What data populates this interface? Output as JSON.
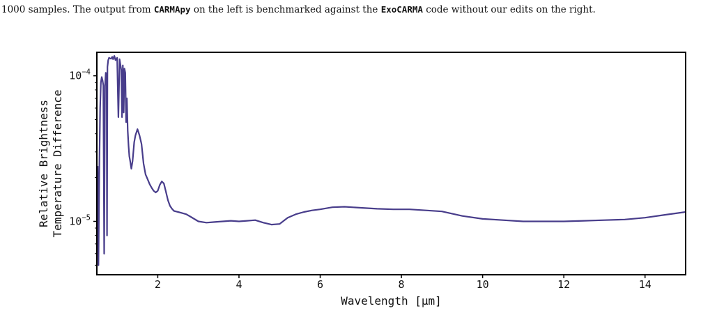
{
  "caption": {
    "part1": "1000 samples. The output from ",
    "code1": "CARMApy",
    "part2": " on the left is benchmarked against the ",
    "code2": "ExoCARMA",
    "part3": " code without our edits on the right."
  },
  "colors": {
    "line": "#483d8b",
    "axes": "#000000",
    "text": "#111111"
  },
  "chart_data": {
    "type": "line",
    "title": "",
    "xlabel": "Wavelength [μm]",
    "ylabel_lines": [
      "Relative Brightness",
      "Temperature Difference"
    ],
    "yscale": "log",
    "xlim": [
      0.5,
      15.0
    ],
    "ylim": [
      4.3e-06,
      0.000145
    ],
    "grid": false,
    "legend": "none",
    "x_ticks": [
      2,
      4,
      6,
      8,
      10,
      12,
      14
    ],
    "x_tick_labels": [
      "2",
      "4",
      "6",
      "8",
      "10",
      "12",
      "14"
    ],
    "y_ticks": [
      {
        "value": 0.0001,
        "base": "10",
        "exponent": "−4"
      },
      {
        "value": 1e-05,
        "base": "10",
        "exponent": "−5"
      }
    ],
    "series": [
      {
        "color": "#483d8b",
        "x": [
          0.52,
          0.54,
          0.56,
          0.58,
          0.6,
          0.62,
          0.64,
          0.66,
          0.68,
          0.7,
          0.72,
          0.74,
          0.75,
          0.76,
          0.78,
          0.8,
          0.82,
          0.85,
          0.88,
          0.9,
          0.93,
          0.96,
          1.0,
          1.03,
          1.06,
          1.1,
          1.12,
          1.14,
          1.16,
          1.18,
          1.2,
          1.22,
          1.24,
          1.26,
          1.28,
          1.3,
          1.32,
          1.35,
          1.38,
          1.42,
          1.45,
          1.5,
          1.55,
          1.6,
          1.65,
          1.7,
          1.75,
          1.8,
          1.85,
          1.9,
          1.95,
          2.0,
          2.05,
          2.1,
          2.15,
          2.2,
          2.25,
          2.3,
          2.35,
          2.4,
          2.5,
          2.6,
          2.7,
          2.8,
          3.0,
          3.2,
          3.4,
          3.6,
          3.8,
          4.0,
          4.2,
          4.4,
          4.6,
          4.8,
          5.0,
          5.2,
          5.4,
          5.6,
          5.8,
          6.0,
          6.3,
          6.6,
          7.0,
          7.4,
          7.8,
          8.2,
          8.6,
          9.0,
          9.5,
          10.0,
          10.5,
          11.0,
          11.5,
          12.0,
          12.5,
          13.0,
          13.5,
          14.0,
          14.5,
          15.0
        ],
        "y": [
          2.4e-05,
          5e-06,
          2.2e-05,
          6e-05,
          9e-05,
          9.8e-05,
          9.3e-05,
          8.6e-05,
          6e-06,
          8.5e-05,
          0.000105,
          0.0001,
          8e-06,
          0.000115,
          0.000128,
          0.000133,
          0.000132,
          0.000131,
          0.000135,
          0.00013,
          0.000137,
          0.000128,
          0.000133,
          5.2e-05,
          0.00013,
          0.00011,
          5.2e-05,
          0.000118,
          5.6e-05,
          0.000112,
          0.000105,
          4.8e-05,
          7e-05,
          4.2e-05,
          3.3e-05,
          2.8e-05,
          2.6e-05,
          2.3e-05,
          2.6e-05,
          3.5e-05,
          3.9e-05,
          4.3e-05,
          3.9e-05,
          3.4e-05,
          2.5e-05,
          2.1e-05,
          1.95e-05,
          1.8e-05,
          1.7e-05,
          1.62e-05,
          1.58e-05,
          1.62e-05,
          1.78e-05,
          1.88e-05,
          1.82e-05,
          1.6e-05,
          1.4e-05,
          1.28e-05,
          1.22e-05,
          1.18e-05,
          1.16e-05,
          1.14e-05,
          1.12e-05,
          1.08e-05,
          1e-05,
          9.8e-06,
          9.9e-06,
          1e-05,
          1.01e-05,
          1e-05,
          1.01e-05,
          1.02e-05,
          9.8e-06,
          9.5e-06,
          9.6e-06,
          1.06e-05,
          1.12e-05,
          1.16e-05,
          1.19e-05,
          1.21e-05,
          1.25e-05,
          1.26e-05,
          1.24e-05,
          1.22e-05,
          1.21e-05,
          1.21e-05,
          1.19e-05,
          1.17e-05,
          1.09e-05,
          1.04e-05,
          1.02e-05,
          1e-05,
          1e-05,
          1e-05,
          1.01e-05,
          1.02e-05,
          1.03e-05,
          1.06e-05,
          1.11e-05,
          1.16e-05
        ]
      }
    ]
  }
}
